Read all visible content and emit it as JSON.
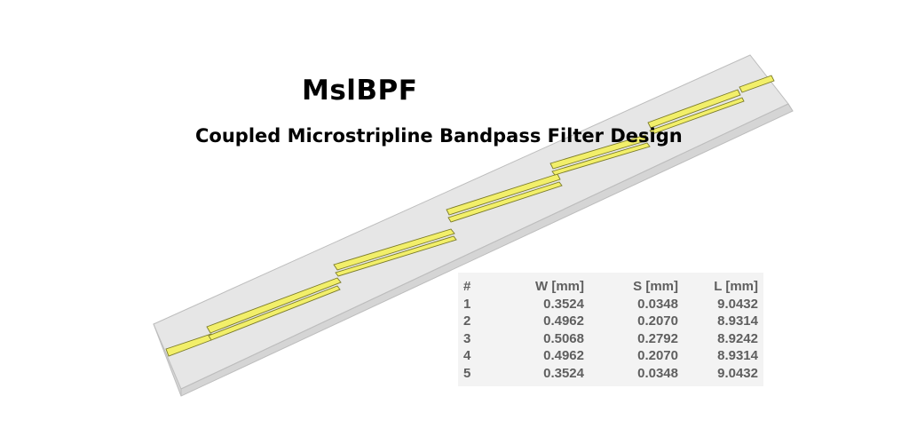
{
  "title": "MslBPF",
  "subtitle": "Coupled Microstripline Bandpass Filter Design",
  "colors": {
    "substrate_top": "#e6e6e6",
    "substrate_side": "#d5d5d5",
    "substrate_edge": "#bdbdbd",
    "strip": "#f2ef6a",
    "strip_edge": "#7a7a28"
  },
  "table": {
    "headers": [
      "#",
      "W [mm]",
      "S [mm]",
      "L [mm]"
    ],
    "rows": [
      [
        "1",
        "0.3524",
        "0.0348",
        "9.0432"
      ],
      [
        "2",
        "0.4962",
        "0.2070",
        "8.9314"
      ],
      [
        "3",
        "0.5068",
        "0.2792",
        "8.9242"
      ],
      [
        "4",
        "0.4962",
        "0.2070",
        "8.9314"
      ],
      [
        "5",
        "0.3524",
        "0.0348",
        "9.0432"
      ]
    ]
  }
}
